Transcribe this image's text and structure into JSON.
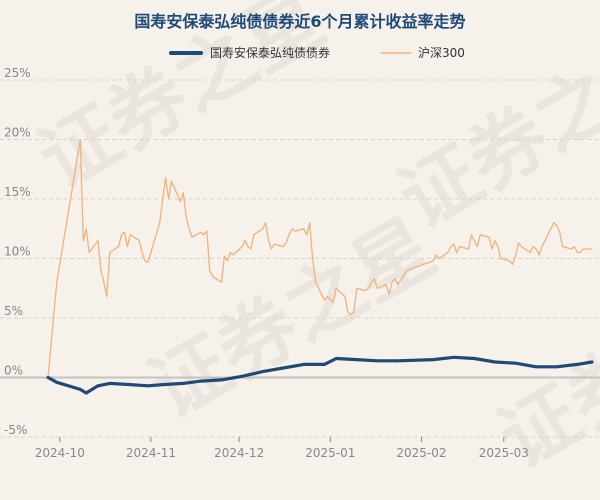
{
  "chart_data": {
    "type": "line",
    "title": "国寿安保泰弘纯债债券近6个月累计收益率走势",
    "xlabel": "",
    "ylabel": "",
    "ylim": [
      -5,
      25
    ],
    "yticks": [
      "25%",
      "20%",
      "15%",
      "10%",
      "5%",
      "0%",
      "-5%"
    ],
    "ytick_values": [
      25,
      20,
      15,
      10,
      5,
      0,
      -5
    ],
    "x_range": [
      "2024-09-27",
      "2025-03-31"
    ],
    "xticks": [
      {
        "label": "2024-10",
        "date": "2024-10-01"
      },
      {
        "label": "2024-11",
        "date": "2024-11-01"
      },
      {
        "label": "2024-12",
        "date": "2024-12-01"
      },
      {
        "label": "2025-01",
        "date": "2025-01-01"
      },
      {
        "label": "2025-02",
        "date": "2025-02-01"
      },
      {
        "label": "2025-03",
        "date": "2025-03-01"
      }
    ],
    "grid": true,
    "legend_position": "top",
    "watermark": "证券之星",
    "colors": {
      "title": "#1e4a78",
      "fund": "#1e4a78",
      "index": "#f0b27a",
      "grid": "#d8d2cb",
      "zero": "#c7c2bc",
      "tick": "#888888",
      "background": "#f6f1ea"
    },
    "series": [
      {
        "name": "国寿安保泰弘纯债债券",
        "x": [
          "2024-09-27",
          "2024-09-30",
          "2024-10-08",
          "2024-10-10",
          "2024-10-14",
          "2024-10-18",
          "2024-10-25",
          "2024-10-31",
          "2024-11-05",
          "2024-11-12",
          "2024-11-18",
          "2024-11-25",
          "2024-12-02",
          "2024-12-09",
          "2024-12-16",
          "2024-12-23",
          "2024-12-30",
          "2025-01-03",
          "2025-01-10",
          "2025-01-17",
          "2025-01-24",
          "2025-02-05",
          "2025-02-12",
          "2025-02-19",
          "2025-02-26",
          "2025-03-05",
          "2025-03-12",
          "2025-03-19",
          "2025-03-26",
          "2025-03-31"
        ],
        "y": [
          0.0,
          -0.4,
          -1.0,
          -1.3,
          -0.7,
          -0.5,
          -0.6,
          -0.7,
          -0.6,
          -0.5,
          -0.3,
          -0.2,
          0.1,
          0.5,
          0.8,
          1.1,
          1.1,
          1.6,
          1.5,
          1.4,
          1.4,
          1.5,
          1.7,
          1.6,
          1.3,
          1.2,
          0.9,
          0.9,
          1.1,
          1.3
        ]
      },
      {
        "name": "沪深300",
        "x": [
          "2024-09-27",
          "2024-09-30",
          "2024-10-08",
          "2024-10-09",
          "2024-10-10",
          "2024-10-11",
          "2024-10-14",
          "2024-10-15",
          "2024-10-16",
          "2024-10-17",
          "2024-10-18",
          "2024-10-21",
          "2024-10-22",
          "2024-10-23",
          "2024-10-24",
          "2024-10-25",
          "2024-10-28",
          "2024-10-29",
          "2024-10-30",
          "2024-10-31",
          "2024-11-01",
          "2024-11-04",
          "2024-11-05",
          "2024-11-06",
          "2024-11-07",
          "2024-11-08",
          "2024-11-11",
          "2024-11-12",
          "2024-11-13",
          "2024-11-14",
          "2024-11-15",
          "2024-11-18",
          "2024-11-19",
          "2024-11-20",
          "2024-11-21",
          "2024-11-22",
          "2024-11-25",
          "2024-11-26",
          "2024-11-27",
          "2024-11-28",
          "2024-11-29",
          "2024-12-02",
          "2024-12-03",
          "2024-12-04",
          "2024-12-05",
          "2024-12-06",
          "2024-12-09",
          "2024-12-10",
          "2024-12-11",
          "2024-12-12",
          "2024-12-13",
          "2024-12-16",
          "2024-12-17",
          "2024-12-18",
          "2024-12-19",
          "2024-12-20",
          "2024-12-23",
          "2024-12-24",
          "2024-12-25",
          "2024-12-26",
          "2024-12-27",
          "2024-12-30",
          "2024-12-31",
          "2025-01-02",
          "2025-01-03",
          "2025-01-06",
          "2025-01-07",
          "2025-01-08",
          "2025-01-09",
          "2025-01-10",
          "2025-01-13",
          "2025-01-14",
          "2025-01-15",
          "2025-01-16",
          "2025-01-17",
          "2025-01-20",
          "2025-01-21",
          "2025-01-22",
          "2025-01-23",
          "2025-01-24",
          "2025-01-27",
          "2025-02-05",
          "2025-02-06",
          "2025-02-07",
          "2025-02-10",
          "2025-02-11",
          "2025-02-12",
          "2025-02-13",
          "2025-02-14",
          "2025-02-17",
          "2025-02-18",
          "2025-02-19",
          "2025-02-20",
          "2025-02-21",
          "2025-02-24",
          "2025-02-25",
          "2025-02-26",
          "2025-02-27",
          "2025-02-28",
          "2025-03-03",
          "2025-03-04",
          "2025-03-05",
          "2025-03-06",
          "2025-03-07",
          "2025-03-10",
          "2025-03-11",
          "2025-03-12",
          "2025-03-13",
          "2025-03-14",
          "2025-03-17",
          "2025-03-18",
          "2025-03-19",
          "2025-03-20",
          "2025-03-21",
          "2025-03-24",
          "2025-03-25",
          "2025-03-26",
          "2025-03-27",
          "2025-03-28",
          "2025-03-31"
        ],
        "y": [
          0.0,
          8.0,
          20.0,
          11.5,
          12.5,
          10.5,
          11.5,
          9.0,
          8.0,
          6.8,
          10.5,
          11.0,
          12.0,
          12.2,
          11.0,
          12.0,
          11.5,
          10.5,
          9.8,
          9.7,
          10.5,
          13.0,
          15.0,
          16.8,
          15.0,
          16.5,
          14.8,
          15.5,
          13.5,
          12.5,
          11.8,
          12.2,
          12.0,
          12.3,
          9.0,
          8.5,
          8.0,
          10.2,
          9.8,
          10.5,
          10.3,
          11.0,
          11.5,
          11.0,
          10.8,
          12.0,
          12.5,
          13.0,
          11.5,
          10.8,
          11.2,
          11.0,
          11.3,
          12.0,
          12.5,
          12.3,
          12.5,
          12.0,
          13.0,
          10.0,
          8.0,
          6.5,
          6.8,
          6.3,
          7.5,
          6.8,
          5.5,
          5.3,
          5.5,
          7.5,
          7.3,
          7.5,
          8.0,
          8.3,
          7.5,
          7.8,
          7.0,
          8.0,
          8.3,
          7.8,
          9.0,
          9.8,
          10.3,
          10.0,
          10.5,
          11.0,
          11.2,
          10.5,
          11.0,
          10.8,
          12.0,
          11.5,
          11.0,
          12.0,
          11.8,
          10.8,
          11.5,
          11.0,
          10.0,
          9.8,
          9.5,
          10.2,
          11.3,
          11.0,
          10.5,
          11.0,
          10.8,
          10.3,
          11.0,
          12.5,
          13.0,
          12.8,
          12.2,
          11.0,
          10.8,
          11.0,
          10.5,
          10.5,
          10.8,
          10.8
        ]
      }
    ]
  }
}
